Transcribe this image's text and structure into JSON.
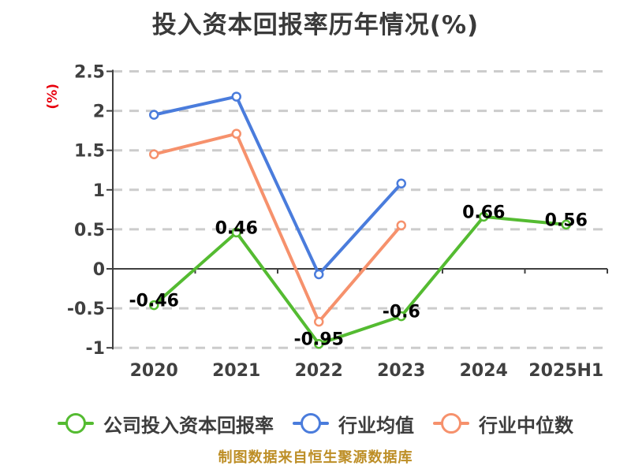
{
  "title": "投入资本回报率历年情况(%)",
  "y_axis_unit_label": "(%)",
  "footer_note": "制图数据来自恒生聚源数据库",
  "colors": {
    "company_series": "#54bb31",
    "industry_mean_series": "#4a7cdc",
    "industry_median_series": "#f6916c",
    "title_text": "#3a3a3a",
    "axis_line": "#404040",
    "axis_text": "#404040",
    "grid_line": "#cccccc",
    "y_unit_label_text": "#e8000d",
    "data_label_text": "#000000",
    "footer_text": "#bd8e26",
    "marker_fill": "#ffffff"
  },
  "chart_data": {
    "type": "line",
    "title": "投入资本回报率历年情况(%)",
    "ylabel": "(%)",
    "categories": [
      "2020",
      "2021",
      "2022",
      "2023",
      "2024",
      "2025H1"
    ],
    "series": [
      {
        "id": "company-roic",
        "name": "公司投入资本回报率",
        "color": "#54bb31",
        "values": [
          -0.46,
          0.46,
          -0.95,
          -0.6,
          0.66,
          0.56
        ],
        "point_labels_shown": true
      },
      {
        "id": "industry-mean",
        "name": "行业均值",
        "color": "#4a7cdc",
        "values": [
          1.95,
          2.18,
          -0.07,
          1.08,
          null,
          null
        ],
        "point_labels_shown": false
      },
      {
        "id": "industry-median",
        "name": "行业中位数",
        "color": "#f6916c",
        "values": [
          1.45,
          1.71,
          -0.67,
          0.55,
          null,
          null
        ],
        "point_labels_shown": false
      }
    ],
    "ylim": [
      -1,
      2.5
    ],
    "yticks": [
      2.5,
      2,
      1.5,
      1,
      0.5,
      0,
      -0.5,
      -1
    ],
    "grid": "horizontal-dashed",
    "legend_position": "bottom",
    "legend": [
      "公司投入资本回报率",
      "行业均值",
      "行业中位数"
    ]
  }
}
